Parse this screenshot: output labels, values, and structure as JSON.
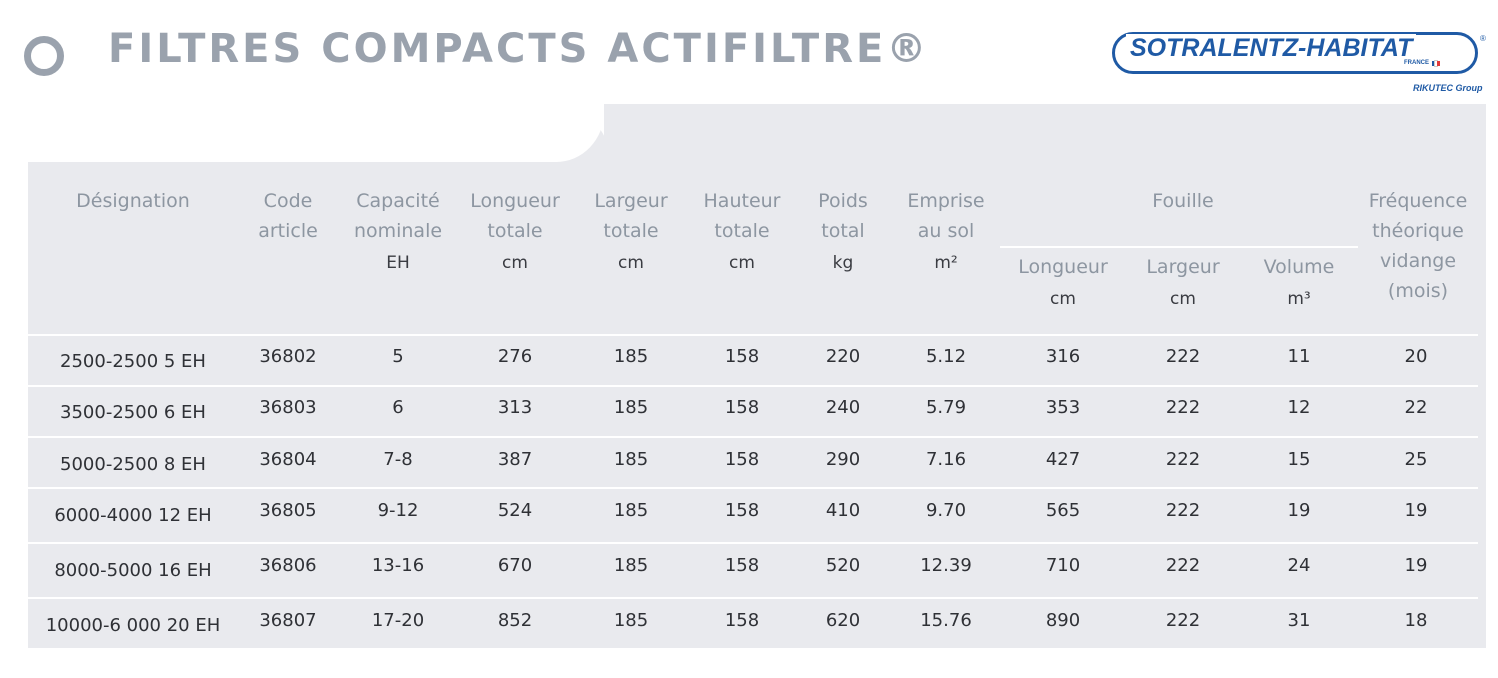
{
  "header": {
    "title": "FILTRES COMPACTS ACTIFILTRE®",
    "brand": "SOTRALENTZ-HABITAT",
    "brand_reg": "®",
    "brand_country": "FRANCE",
    "brand_group": "RIKUTEC Group"
  },
  "colors": {
    "brand_blue": "#1f5aa5",
    "header_gray": "#9aa2ad",
    "panel_bg": "#e9eaee",
    "header_text": "#8d96a1"
  },
  "table": {
    "headers": {
      "designation": "Désignation",
      "code_1": "Code",
      "code_2": "article",
      "capacite_1": "Capacité",
      "capacite_2": "nominale",
      "capacite_unit": "EH",
      "longueur_1": "Longueur",
      "longueur_2": "totale",
      "longueur_unit": "cm",
      "largeur_1": "Largeur",
      "largeur_2": "totale",
      "largeur_unit": "cm",
      "hauteur_1": "Hauteur",
      "hauteur_2": "totale",
      "hauteur_unit": "cm",
      "poids_1": "Poids",
      "poids_2": "total",
      "poids_unit": "kg",
      "emprise_1": "Emprise",
      "emprise_2": "au sol",
      "emprise_unit": "m²",
      "fouille": "Fouille",
      "fouille_longueur": "Longueur",
      "fouille_longueur_unit": "cm",
      "fouille_largeur": "Largeur",
      "fouille_largeur_unit": "cm",
      "fouille_volume": "Volume",
      "fouille_volume_unit": "m³",
      "frequence_1": "Fréquence",
      "frequence_2": "théorique",
      "frequence_3": "vidange",
      "frequence_4": "(mois)"
    },
    "rows": [
      [
        "2500-2500 5 EH",
        "36802",
        "5",
        "276",
        "185",
        "158",
        "220",
        "5.12",
        "316",
        "222",
        "11",
        "20"
      ],
      [
        "3500-2500 6 EH",
        "36803",
        "6",
        "313",
        "185",
        "158",
        "240",
        "5.79",
        "353",
        "222",
        "12",
        "22"
      ],
      [
        "5000-2500 8 EH",
        "36804",
        "7-8",
        "387",
        "185",
        "158",
        "290",
        "7.16",
        "427",
        "222",
        "15",
        "25"
      ],
      [
        "6000-4000 12 EH",
        "36805",
        "9-12",
        "524",
        "185",
        "158",
        "410",
        "9.70",
        "565",
        "222",
        "19",
        "19"
      ],
      [
        "8000-5000 16 EH",
        "36806",
        "13-16",
        "670",
        "185",
        "158",
        "520",
        "12.39",
        "710",
        "222",
        "24",
        "19"
      ],
      [
        "10000-6 000 20 EH",
        "36807",
        "17-20",
        "852",
        "185",
        "158",
        "620",
        "15.76",
        "890",
        "222",
        "31",
        "18"
      ]
    ]
  }
}
